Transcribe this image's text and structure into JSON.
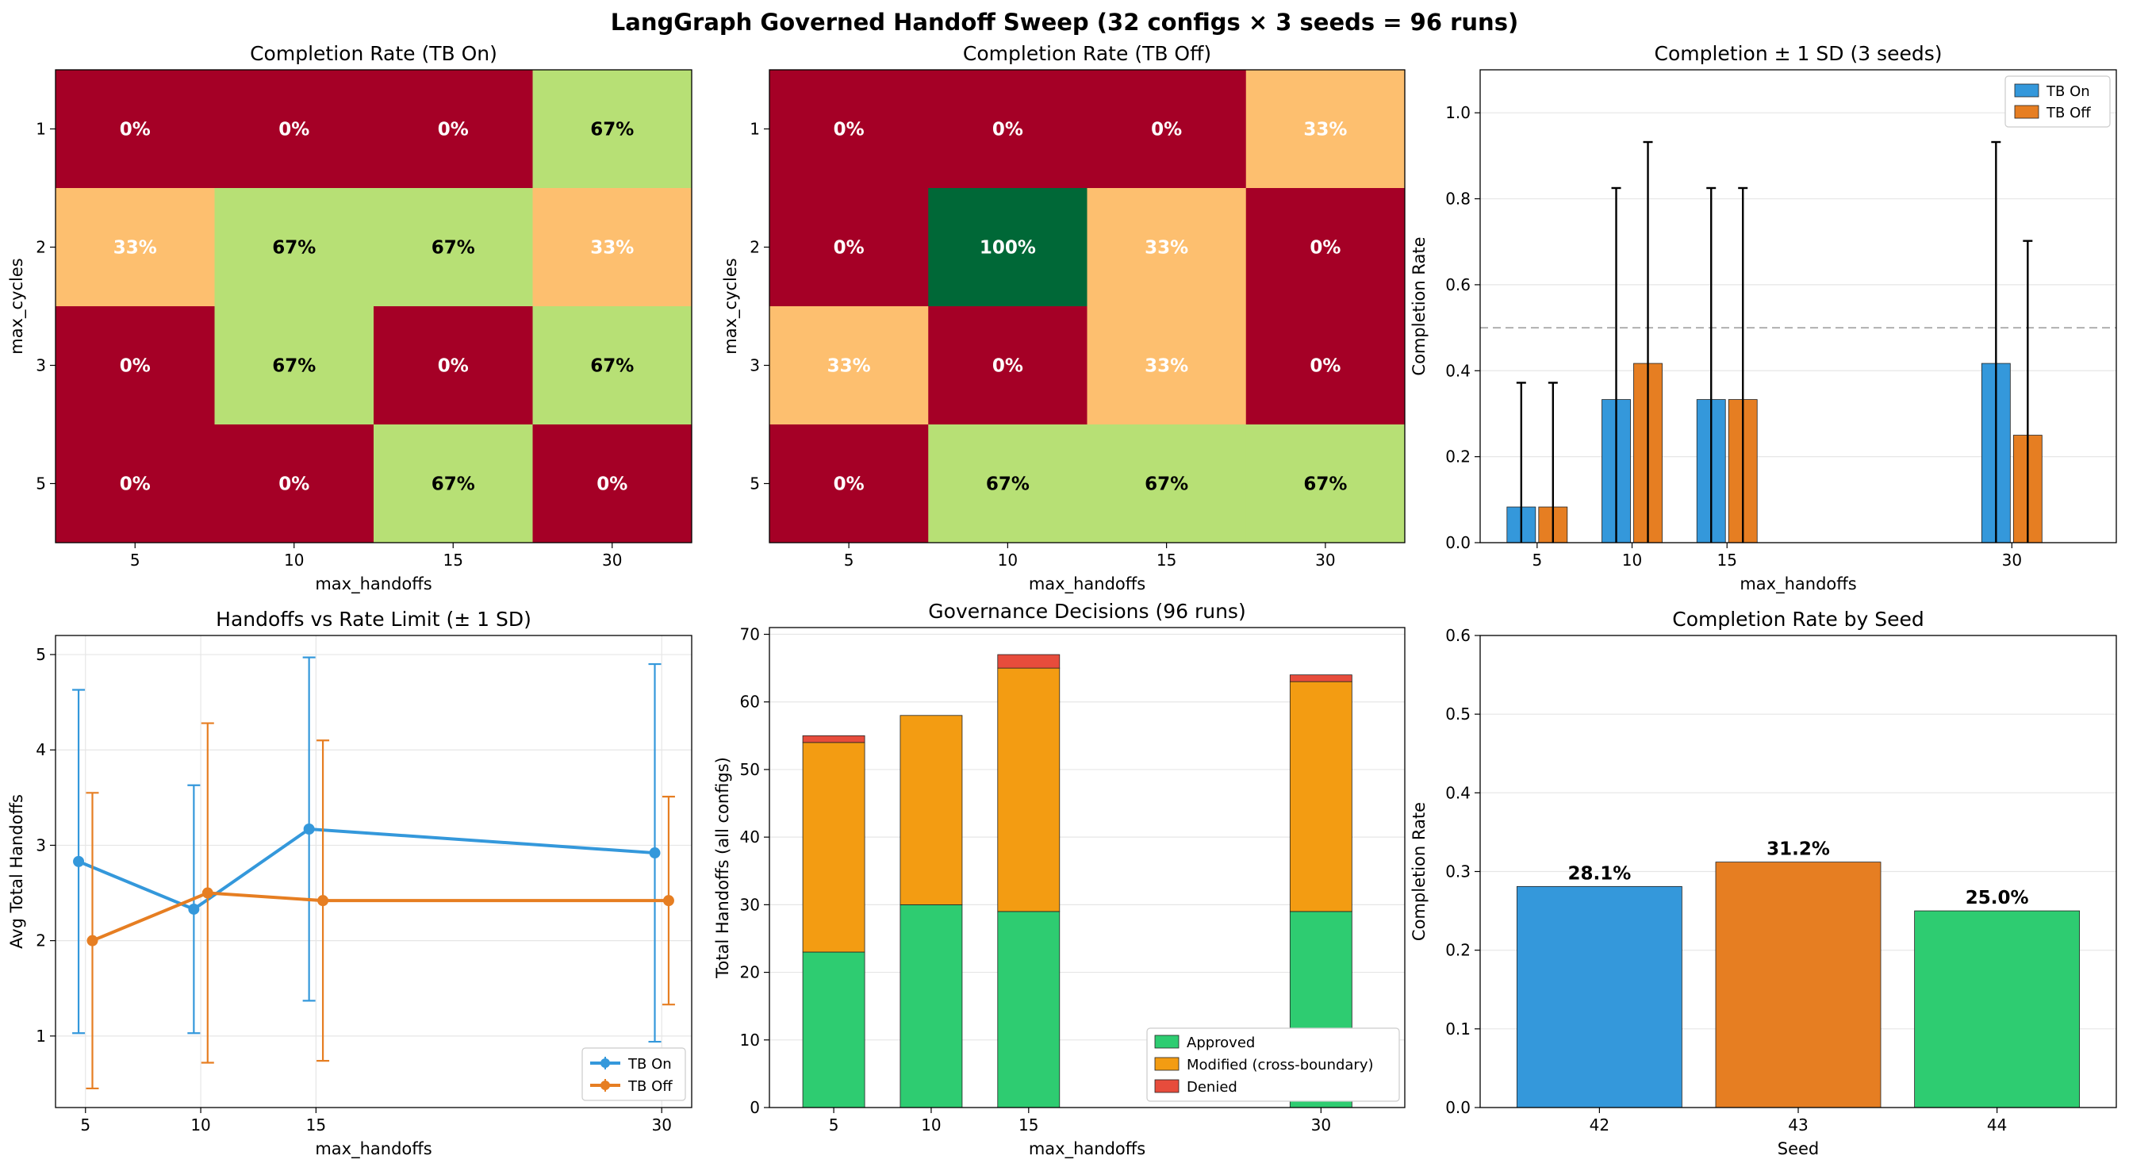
{
  "figure": {
    "title": "LangGraph Governed Handoff Sweep (32 configs × 3 seeds = 96 runs)"
  },
  "colors": {
    "tb_on": "#3498db",
    "tb_off": "#e67e22",
    "approved": "#2ecc71",
    "modified": "#f39c12",
    "denied": "#e74c3c",
    "seed_42": "#3498db",
    "seed_43": "#e67e22",
    "seed_44": "#2ecc71",
    "heat_0": "#a50026",
    "heat_33": "#fdbf6f",
    "heat_67": "#b7e075",
    "heat_100": "#006837"
  },
  "chart_data": [
    {
      "id": "heat_on",
      "type": "heatmap",
      "title": "Completion Rate (TB On)",
      "xlabel": "max_handoffs",
      "ylabel": "max_cycles",
      "x": [
        "5",
        "10",
        "15",
        "30"
      ],
      "y": [
        "1",
        "2",
        "3",
        "5"
      ],
      "values": [
        [
          0,
          0,
          0,
          67
        ],
        [
          33,
          67,
          67,
          33
        ],
        [
          0,
          67,
          0,
          67
        ],
        [
          0,
          0,
          67,
          0
        ]
      ],
      "labels": [
        [
          "0%",
          "0%",
          "0%",
          "67%"
        ],
        [
          "33%",
          "67%",
          "67%",
          "33%"
        ],
        [
          "0%",
          "67%",
          "0%",
          "67%"
        ],
        [
          "0%",
          "0%",
          "67%",
          "0%"
        ]
      ]
    },
    {
      "id": "heat_off",
      "type": "heatmap",
      "title": "Completion Rate (TB Off)",
      "xlabel": "max_handoffs",
      "ylabel": "max_cycles",
      "x": [
        "5",
        "10",
        "15",
        "30"
      ],
      "y": [
        "1",
        "2",
        "3",
        "5"
      ],
      "values": [
        [
          0,
          0,
          0,
          33
        ],
        [
          0,
          100,
          33,
          0
        ],
        [
          33,
          0,
          33,
          0
        ],
        [
          0,
          67,
          67,
          67
        ]
      ],
      "labels": [
        [
          "0%",
          "0%",
          "0%",
          "33%"
        ],
        [
          "0%",
          "100%",
          "33%",
          "0%"
        ],
        [
          "33%",
          "0%",
          "33%",
          "0%"
        ],
        [
          "0%",
          "67%",
          "67%",
          "67%"
        ]
      ]
    },
    {
      "id": "completion_sd",
      "type": "bar",
      "title": "Completion ± 1 SD (3 seeds)",
      "xlabel": "max_handoffs",
      "ylabel": "Completion Rate",
      "x": [
        5,
        10,
        15,
        30
      ],
      "xlim": [
        2,
        35.5
      ],
      "ylim": [
        0,
        1.1
      ],
      "yticks": [
        0.0,
        0.2,
        0.4,
        0.6,
        0.8,
        1.0
      ],
      "yticklabels": [
        "0.0",
        "0.2",
        "0.4",
        "0.6",
        "0.8",
        "1.0"
      ],
      "reference_line": 0.5,
      "grid": true,
      "legend": "top-right",
      "series": [
        {
          "name": "TB On",
          "values": [
            0.083,
            0.333,
            0.333,
            0.417
          ],
          "sd": [
            0.289,
            0.492,
            0.492,
            0.515
          ]
        },
        {
          "name": "TB Off",
          "values": [
            0.083,
            0.417,
            0.333,
            0.25
          ],
          "sd": [
            0.289,
            0.515,
            0.492,
            0.452
          ]
        }
      ]
    },
    {
      "id": "handoffs_rate",
      "type": "line",
      "title": "Handoffs vs Rate Limit (± 1 SD)",
      "xlabel": "max_handoffs",
      "ylabel": "Avg Total Handoffs",
      "xlim": [
        3.7,
        31.3
      ],
      "ylim": [
        0.25,
        5.2
      ],
      "xticks": [
        5,
        10,
        15,
        30
      ],
      "yticks": [
        1,
        2,
        3,
        4,
        5
      ],
      "grid": true,
      "legend": "bottom-right",
      "series": [
        {
          "name": "TB On",
          "x": [
            4.7,
            9.7,
            14.7,
            29.7
          ],
          "y": [
            2.83,
            2.33,
            3.17,
            2.92
          ],
          "sd": [
            1.8,
            1.3,
            1.8,
            1.98
          ]
        },
        {
          "name": "TB Off",
          "x": [
            5.3,
            10.3,
            15.3,
            30.3
          ],
          "y": [
            2.0,
            2.5,
            2.42,
            2.42
          ],
          "sd": [
            1.55,
            1.78,
            1.68,
            1.09
          ]
        }
      ]
    },
    {
      "id": "governance",
      "type": "bar",
      "title": "Governance Decisions (96 runs)",
      "xlabel": "max_handoffs",
      "ylabel": "Total Handoffs (all configs)",
      "x": [
        5,
        10,
        15,
        30
      ],
      "xlim": [
        1.7,
        34.3
      ],
      "ylim": [
        0,
        71
      ],
      "yticks": [
        0,
        10,
        20,
        30,
        40,
        50,
        60,
        70
      ],
      "grid": true,
      "legend": "bottom-right",
      "series": [
        {
          "name": "Approved",
          "values": [
            23,
            30,
            29,
            29
          ]
        },
        {
          "name": "Modified (cross-boundary)",
          "values": [
            31,
            28,
            36,
            34
          ]
        },
        {
          "name": "Denied",
          "values": [
            1,
            0,
            2,
            1
          ]
        }
      ]
    },
    {
      "id": "by_seed",
      "type": "bar",
      "title": "Completion Rate by Seed",
      "xlabel": "Seed",
      "ylabel": "Completion Rate",
      "categories": [
        "42",
        "43",
        "44"
      ],
      "values": [
        0.281,
        0.312,
        0.25
      ],
      "labels": [
        "28.1%",
        "31.2%",
        "25.0%"
      ],
      "ylim": [
        0,
        0.6
      ],
      "yticks": [
        0.0,
        0.1,
        0.2,
        0.3,
        0.4,
        0.5,
        0.6
      ],
      "yticklabels": [
        "0.0",
        "0.1",
        "0.2",
        "0.3",
        "0.4",
        "0.5",
        "0.6"
      ],
      "grid": true
    }
  ]
}
